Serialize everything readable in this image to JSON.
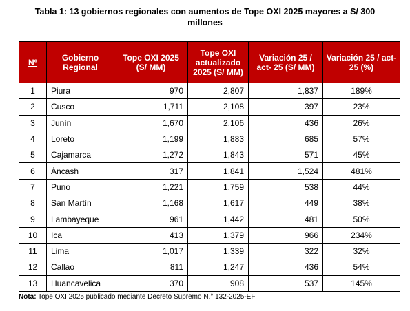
{
  "title": "Tabla 1: 13 gobiernos regionales con aumentos de Tope OXI 2025 mayores a S/ 300 millones",
  "table": {
    "header": [
      "Nº",
      "Gobierno Regional",
      "Tope OXI 2025 (S/ MM)",
      "Tope OXI actualizado 2025 (S/ MM)",
      "Variación 25 / act- 25 (S/ MM)",
      "Variación 25 / act-25 (%)"
    ],
    "rows": [
      [
        "1",
        "Piura",
        "970",
        "2,807",
        "1,837",
        "189%"
      ],
      [
        "2",
        "Cusco",
        "1,711",
        "2,108",
        "397",
        "23%"
      ],
      [
        "3",
        "Junín",
        "1,670",
        "2,106",
        "436",
        "26%"
      ],
      [
        "4",
        "Loreto",
        "1,199",
        "1,883",
        "685",
        "57%"
      ],
      [
        "5",
        "Cajamarca",
        "1,272",
        "1,843",
        "571",
        "45%"
      ],
      [
        "6",
        "Áncash",
        "317",
        "1,841",
        "1,524",
        "481%"
      ],
      [
        "7",
        "Puno",
        "1,221",
        "1,759",
        "538",
        "44%"
      ],
      [
        "8",
        "San Martín",
        "1,168",
        "1,617",
        "449",
        "38%"
      ],
      [
        "9",
        "Lambayeque",
        "961",
        "1,442",
        "481",
        "50%"
      ],
      [
        "10",
        "Ica",
        "413",
        "1,379",
        "966",
        "234%"
      ],
      [
        "11",
        "Lima",
        "1,017",
        "1,339",
        "322",
        "32%"
      ],
      [
        "12",
        "Callao",
        "811",
        "1,247",
        "436",
        "54%"
      ],
      [
        "13",
        "Huancavelica",
        "370",
        "908",
        "537",
        "145%"
      ]
    ]
  },
  "note": {
    "label": "Nota:",
    "text": "Tope OXI 2025 publicado mediante Decreto Supremo N.° 132-2025-EF"
  }
}
